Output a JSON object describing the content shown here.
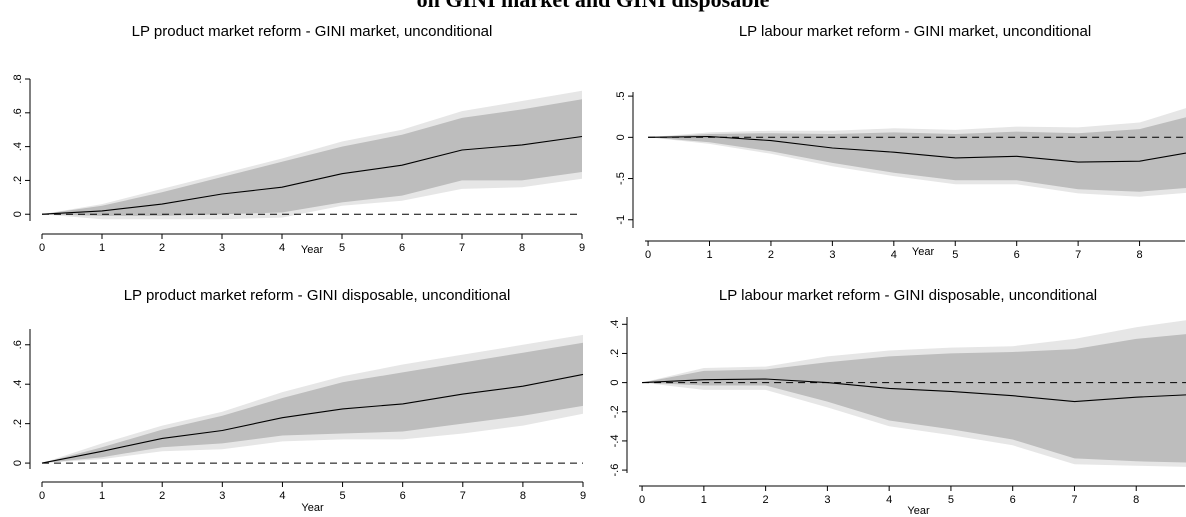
{
  "figure": {
    "title_fragment": "on GINI market and GINI disposable"
  },
  "colors": {
    "band_outer": "#e6e6e6",
    "band_inner": "#bdbdbd",
    "line": "#000000",
    "zero_line": "#000000",
    "axis": "#000000"
  },
  "chart_data": [
    {
      "type": "area",
      "title": "LP product market reform - GINI market, unconditional",
      "xlabel": "Year",
      "ylabel": "",
      "x": [
        0,
        1,
        2,
        3,
        4,
        5,
        6,
        7,
        8,
        9
      ],
      "xlim": [
        0,
        9
      ],
      "ylim": [
        -0.04,
        0.8
      ],
      "yticks": [
        0,
        0.2,
        0.4,
        0.6,
        0.8
      ],
      "ytick_labels": [
        "0",
        ".2",
        ".4",
        ".6",
        ".8"
      ],
      "xticks": [
        0,
        1,
        2,
        3,
        4,
        5,
        6,
        7,
        8,
        9
      ],
      "series": [
        {
          "role": "outer_band",
          "lower": [
            0,
            -0.03,
            -0.03,
            -0.03,
            -0.02,
            0.05,
            0.08,
            0.15,
            0.16,
            0.21
          ],
          "upper": [
            0,
            0.06,
            0.15,
            0.24,
            0.33,
            0.43,
            0.5,
            0.61,
            0.67,
            0.73
          ]
        },
        {
          "role": "inner_band",
          "lower": [
            0,
            -0.01,
            -0.01,
            0,
            0.01,
            0.07,
            0.11,
            0.2,
            0.2,
            0.25
          ],
          "upper": [
            0,
            0.05,
            0.13,
            0.22,
            0.31,
            0.4,
            0.47,
            0.57,
            0.62,
            0.68
          ]
        },
        {
          "role": "point_estimate",
          "values": [
            0,
            0.02,
            0.06,
            0.12,
            0.16,
            0.24,
            0.29,
            0.38,
            0.41,
            0.46
          ]
        },
        {
          "role": "zero_line",
          "values": [
            0,
            0,
            0,
            0,
            0,
            0,
            0,
            0,
            0,
            0
          ]
        }
      ]
    },
    {
      "type": "area",
      "title": "LP labour market reform - GINI market, unconditional",
      "xlabel": "Year",
      "ylabel": "",
      "x": [
        0,
        1,
        2,
        3,
        4,
        5,
        6,
        7,
        8,
        9
      ],
      "xlim": [
        -0.05,
        9
      ],
      "ylim": [
        -1.1,
        0.55
      ],
      "yticks": [
        -1,
        -0.5,
        0,
        0.5
      ],
      "ytick_labels": [
        "-1",
        "-.5",
        "0",
        ".5"
      ],
      "xticks": [
        0,
        1,
        2,
        3,
        4,
        5,
        6,
        7,
        8
      ],
      "series": [
        {
          "role": "outer_band",
          "lower": [
            0,
            -0.08,
            -0.2,
            -0.35,
            -0.47,
            -0.57,
            -0.57,
            -0.68,
            -0.72,
            -0.66
          ],
          "upper": [
            0,
            0.06,
            0.08,
            0.08,
            0.11,
            0.09,
            0.13,
            0.12,
            0.18,
            0.41
          ]
        },
        {
          "role": "inner_band",
          "lower": [
            0,
            -0.06,
            -0.17,
            -0.31,
            -0.43,
            -0.52,
            -0.52,
            -0.63,
            -0.66,
            -0.6
          ],
          "upper": [
            0,
            0.04,
            0.05,
            0.04,
            0.06,
            0.04,
            0.07,
            0.05,
            0.1,
            0.29
          ]
        },
        {
          "role": "point_estimate",
          "values": [
            0,
            0.01,
            -0.04,
            -0.13,
            -0.18,
            -0.25,
            -0.23,
            -0.3,
            -0.29,
            -0.16
          ]
        },
        {
          "role": "zero_line",
          "values": [
            0,
            0,
            0,
            0,
            0,
            0,
            0,
            0,
            0,
            0
          ]
        }
      ]
    },
    {
      "type": "area",
      "title": "LP product market reform - GINI disposable, unconditional",
      "xlabel": "Year",
      "ylabel": "",
      "x": [
        0,
        1,
        2,
        3,
        4,
        5,
        6,
        7,
        8,
        9
      ],
      "xlim": [
        0,
        9
      ],
      "ylim": [
        -0.03,
        0.68
      ],
      "yticks": [
        0,
        0.2,
        0.4,
        0.6
      ],
      "ytick_labels": [
        "0",
        ".2",
        ".4",
        ".6"
      ],
      "xticks": [
        0,
        1,
        2,
        3,
        4,
        5,
        6,
        7,
        8,
        9
      ],
      "series": [
        {
          "role": "outer_band",
          "lower": [
            0,
            0.02,
            0.06,
            0.07,
            0.11,
            0.12,
            0.12,
            0.15,
            0.19,
            0.25
          ],
          "upper": [
            0,
            0.1,
            0.19,
            0.26,
            0.36,
            0.44,
            0.5,
            0.55,
            0.6,
            0.65
          ]
        },
        {
          "role": "inner_band",
          "lower": [
            0,
            0.03,
            0.08,
            0.1,
            0.14,
            0.15,
            0.16,
            0.2,
            0.24,
            0.29
          ],
          "upper": [
            0,
            0.08,
            0.17,
            0.24,
            0.33,
            0.41,
            0.46,
            0.51,
            0.56,
            0.61
          ]
        },
        {
          "role": "point_estimate",
          "values": [
            0,
            0.06,
            0.125,
            0.165,
            0.23,
            0.275,
            0.3,
            0.35,
            0.39,
            0.45
          ]
        },
        {
          "role": "zero_line",
          "values": [
            0,
            0,
            0,
            0,
            0,
            0,
            0,
            0,
            0,
            0
          ]
        }
      ]
    },
    {
      "type": "area",
      "title": "LP labour market reform - GINI disposable, unconditional",
      "xlabel": "Year",
      "ylabel": "",
      "x": [
        0,
        1,
        2,
        3,
        4,
        5,
        6,
        7,
        8,
        9
      ],
      "xlim": [
        -0.05,
        9
      ],
      "ylim": [
        -0.62,
        0.45
      ],
      "yticks": [
        -0.6,
        -0.4,
        -0.2,
        0,
        0.2,
        0.4
      ],
      "ytick_labels": [
        "-.6",
        "-.4",
        "-.2",
        "0",
        ".2",
        ".4"
      ],
      "xticks": [
        0,
        1,
        2,
        3,
        4,
        5,
        6,
        7,
        8
      ],
      "series": [
        {
          "role": "outer_band",
          "lower": [
            0,
            -0.05,
            -0.05,
            -0.17,
            -0.3,
            -0.36,
            -0.43,
            -0.56,
            -0.57,
            -0.58
          ],
          "upper": [
            0,
            0.1,
            0.11,
            0.18,
            0.22,
            0.24,
            0.25,
            0.3,
            0.38,
            0.44
          ]
        },
        {
          "role": "inner_band",
          "lower": [
            0,
            -0.02,
            -0.02,
            -0.13,
            -0.26,
            -0.32,
            -0.39,
            -0.52,
            -0.54,
            -0.55
          ],
          "upper": [
            0,
            0.08,
            0.09,
            0.14,
            0.18,
            0.2,
            0.21,
            0.23,
            0.3,
            0.34
          ]
        },
        {
          "role": "point_estimate",
          "values": [
            0,
            0.02,
            0.025,
            0,
            -0.04,
            -0.06,
            -0.09,
            -0.13,
            -0.1,
            -0.08
          ]
        },
        {
          "role": "zero_line",
          "values": [
            0,
            0,
            0,
            0,
            0,
            0,
            0,
            0,
            0,
            0
          ]
        }
      ]
    }
  ]
}
